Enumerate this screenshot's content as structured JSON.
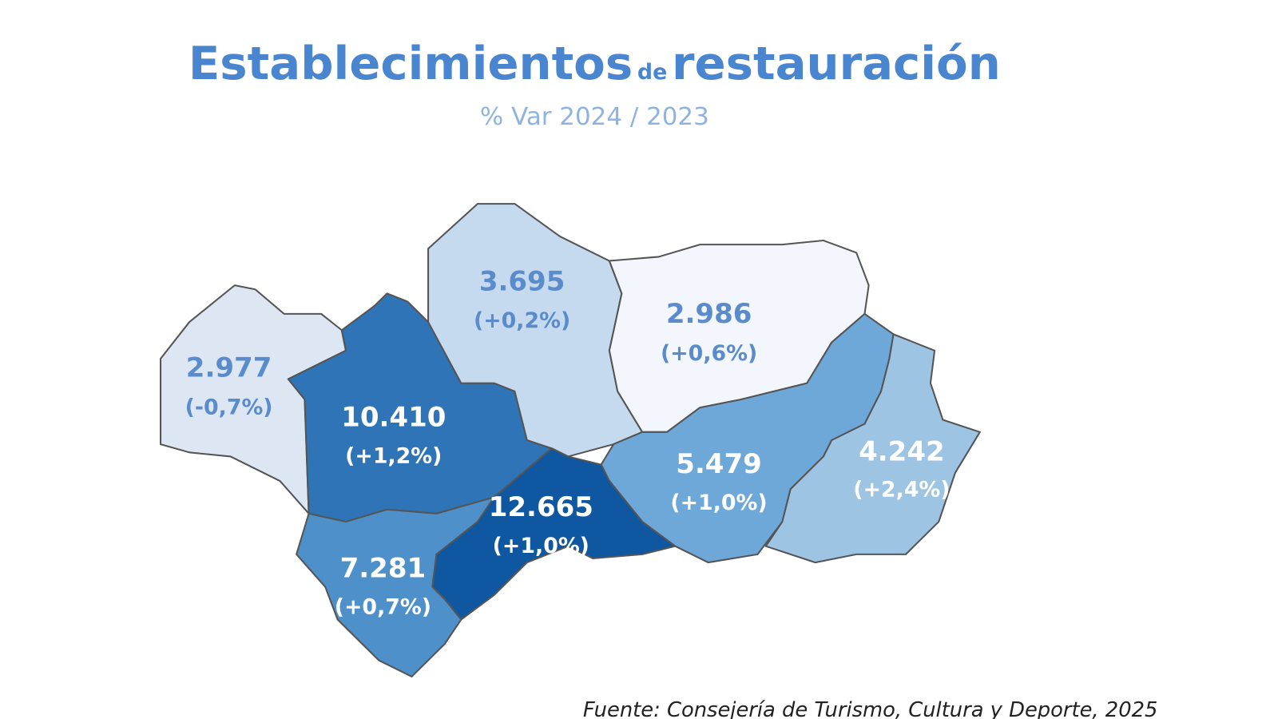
{
  "header": {
    "title_a": "Establecimientos",
    "title_b": "de",
    "title_c": "restauración",
    "subtitle": "% Var 2024 / 2023"
  },
  "regions": [
    {
      "value": "2.977",
      "change": "(-0,7%)",
      "color": "#dde7f3",
      "text_color": "#5a8ccc"
    },
    {
      "value": "10.410",
      "change": "(+1,2%)",
      "color": "#2e74b7",
      "text_color": "#ffffff"
    },
    {
      "value": "3.695",
      "change": "(+0,2%)",
      "color": "#c6daef",
      "text_color": "#5a8ccc"
    },
    {
      "value": "2.986",
      "change": "(+0,6%)",
      "color": "#f3f7fd",
      "text_color": "#5a8ccc"
    },
    {
      "value": "5.479",
      "change": "(+1,0%)",
      "color": "#6ea8d9",
      "text_color": "#ffffff"
    },
    {
      "value": "4.242",
      "change": "(+2,4%)",
      "color": "#9dc4e3",
      "text_color": "#ffffff"
    },
    {
      "value": "12.665",
      "change": "(+1,0%)",
      "color": "#0f58a1",
      "text_color": "#ffffff"
    },
    {
      "value": "7.281",
      "change": "(+0,7%)",
      "color": "#4e90ca",
      "text_color": "#ffffff"
    }
  ],
  "footer": {
    "source": "Fuente: Consejería de Turismo, Cultura y Deporte, 2025"
  }
}
